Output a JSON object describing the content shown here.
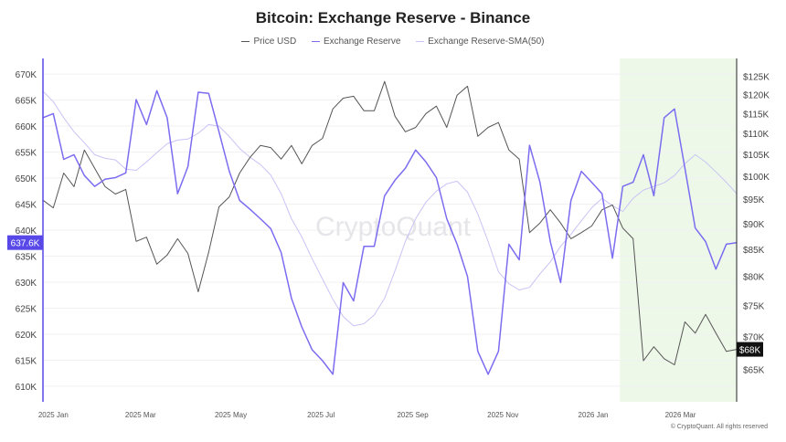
{
  "chart_data": {
    "type": "line",
    "title": "Bitcoin: Exchange Reserve - Binance",
    "watermark": "CryptoQuant",
    "footer": "© CryptoQuant. All rights reserved",
    "legend_position": "top",
    "grid": true,
    "x": [
      "2024-12-25",
      "2025-01-01",
      "2025-01-08",
      "2025-01-15",
      "2025-01-22",
      "2025-01-29",
      "2025-02-05",
      "2025-02-12",
      "2025-02-19",
      "2025-02-26",
      "2025-03-05",
      "2025-03-12",
      "2025-03-19",
      "2025-03-26",
      "2025-04-02",
      "2025-04-09",
      "2025-04-16",
      "2025-04-23",
      "2025-04-30",
      "2025-05-07",
      "2025-05-14",
      "2025-05-21",
      "2025-05-28",
      "2025-06-04",
      "2025-06-11",
      "2025-06-18",
      "2025-06-25",
      "2025-07-02",
      "2025-07-09",
      "2025-07-16",
      "2025-07-23",
      "2025-07-30",
      "2025-08-06",
      "2025-08-13",
      "2025-08-20",
      "2025-08-27",
      "2025-09-03",
      "2025-09-10",
      "2025-09-17",
      "2025-09-24",
      "2025-10-01",
      "2025-10-08",
      "2025-10-15",
      "2025-10-22",
      "2025-10-29",
      "2025-11-05",
      "2025-11-12",
      "2025-11-19",
      "2025-11-26",
      "2025-12-03",
      "2025-12-10",
      "2025-12-17",
      "2025-12-24",
      "2025-12-31",
      "2026-01-07",
      "2026-01-14",
      "2026-01-21",
      "2026-01-28",
      "2026-02-04",
      "2026-02-11",
      "2026-02-18",
      "2026-02-25",
      "2026-03-04",
      "2026-03-11",
      "2026-03-18",
      "2026-03-25",
      "2026-04-01",
      "2026-04-08"
    ],
    "x_ticks": [
      "2025 Jan",
      "2025 Mar",
      "2025 May",
      "2025 Jul",
      "2025 Sep",
      "2025 Nov",
      "2026 Jan",
      "2026 Mar"
    ],
    "x_tick_dates": [
      "2025-01-01",
      "2025-03-01",
      "2025-05-01",
      "2025-07-01",
      "2025-09-01",
      "2025-11-01",
      "2026-01-01",
      "2026-03-01"
    ],
    "x_range": [
      "2024-12-25",
      "2026-04-08"
    ],
    "highlight_range": [
      "2026-01-19",
      "2026-04-08"
    ],
    "highlight_color": "#eef8e8",
    "y_left": {
      "scale": "linear",
      "range": [
        607,
        673
      ],
      "ticks": [
        "670K",
        "665K",
        "660K",
        "655K",
        "650K",
        "645K",
        "640K",
        "635K",
        "630K",
        "625K",
        "620K",
        "615K",
        "610K"
      ],
      "tick_values": [
        670,
        665,
        660,
        655,
        650,
        645,
        640,
        635,
        630,
        625,
        620,
        615,
        610
      ],
      "current_label": "637.6K",
      "current_value": 637.6,
      "color": "#5848e8"
    },
    "y_right": {
      "scale": "log",
      "range": [
        60.5,
        130
      ],
      "ticks": [
        "$125K",
        "$120K",
        "$115K",
        "$110K",
        "$105K",
        "$100K",
        "$95K",
        "$90K",
        "$85K",
        "$80K",
        "$75K",
        "$70K",
        "$65K"
      ],
      "tick_values": [
        125,
        120,
        115,
        110,
        105,
        100,
        95,
        90,
        85,
        80,
        75,
        70,
        65
      ],
      "current_label": "$68K",
      "current_value": 68,
      "color": "#111111"
    },
    "series": [
      {
        "name": "Price USD",
        "axis": "right",
        "unit": "thousand USD",
        "color": "#555555",
        "values": [
          94.8,
          93.2,
          100.7,
          97.7,
          106.0,
          101.8,
          97.7,
          96.1,
          97.1,
          86.5,
          87.3,
          82.2,
          83.9,
          87.0,
          84.2,
          77.3,
          84.4,
          93.4,
          95.5,
          100.7,
          104.3,
          107.1,
          106.6,
          103.9,
          107.1,
          102.8,
          107.1,
          108.8,
          116.2,
          119.0,
          119.5,
          115.7,
          115.7,
          123.5,
          114.3,
          110.4,
          111.5,
          115.0,
          116.9,
          111.5,
          119.8,
          122.2,
          109.3,
          111.5,
          112.7,
          106.0,
          103.9,
          88.2,
          90.1,
          92.8,
          90.1,
          87.0,
          88.2,
          89.5,
          92.8,
          93.8,
          89.1,
          87.0,
          66.3,
          68.4,
          66.6,
          65.7,
          72.3,
          70.5,
          73.5,
          70.5,
          67.7,
          68.0
        ]
      },
      {
        "name": "Exchange Reserve",
        "axis": "left",
        "unit": "thousand BTC",
        "color": "#7b6cf0",
        "values": [
          661.6,
          662.4,
          653.6,
          654.5,
          650.5,
          648.4,
          649.8,
          650.1,
          651.0,
          665.1,
          660.3,
          666.8,
          661.6,
          647.0,
          652.2,
          666.5,
          666.3,
          658.9,
          651.3,
          645.7,
          644.0,
          642.2,
          640.3,
          635.7,
          626.9,
          621.4,
          617.0,
          614.9,
          612.3,
          629.9,
          626.4,
          636.9,
          636.9,
          646.6,
          649.6,
          651.9,
          655.4,
          653.1,
          650.1,
          642.2,
          637.3,
          631.1,
          616.7,
          612.3,
          616.7,
          637.3,
          634.3,
          656.3,
          649.2,
          637.8,
          629.9,
          645.7,
          651.3,
          649.2,
          647.0,
          634.6,
          648.4,
          649.2,
          654.5,
          646.6,
          661.6,
          663.3,
          651.9,
          640.4,
          637.8,
          632.5,
          637.3,
          637.6
        ]
      },
      {
        "name": "Exchange Reserve-SMA(50)",
        "axis": "left",
        "unit": "thousand BTC",
        "color": "#c9c3f6",
        "values": [
          666.7,
          664.7,
          661.6,
          658.9,
          656.8,
          654.5,
          653.8,
          653.5,
          651.7,
          651.5,
          653.1,
          654.9,
          656.6,
          657.3,
          657.5,
          658.6,
          660.3,
          660.0,
          658.0,
          655.7,
          654.0,
          652.6,
          650.6,
          647.0,
          642.2,
          638.7,
          634.5,
          630.6,
          626.7,
          623.4,
          621.6,
          622.0,
          623.7,
          626.9,
          632.2,
          637.8,
          642.2,
          645.4,
          647.5,
          648.9,
          649.4,
          647.3,
          643.1,
          637.8,
          632.0,
          629.7,
          628.5,
          629.0,
          631.6,
          633.9,
          636.9,
          639.2,
          641.8,
          644.3,
          646.1,
          644.7,
          643.6,
          646.1,
          647.7,
          648.4,
          649.1,
          650.5,
          652.8,
          654.5,
          653.1,
          651.2,
          649.2,
          647.0
        ]
      }
    ]
  }
}
